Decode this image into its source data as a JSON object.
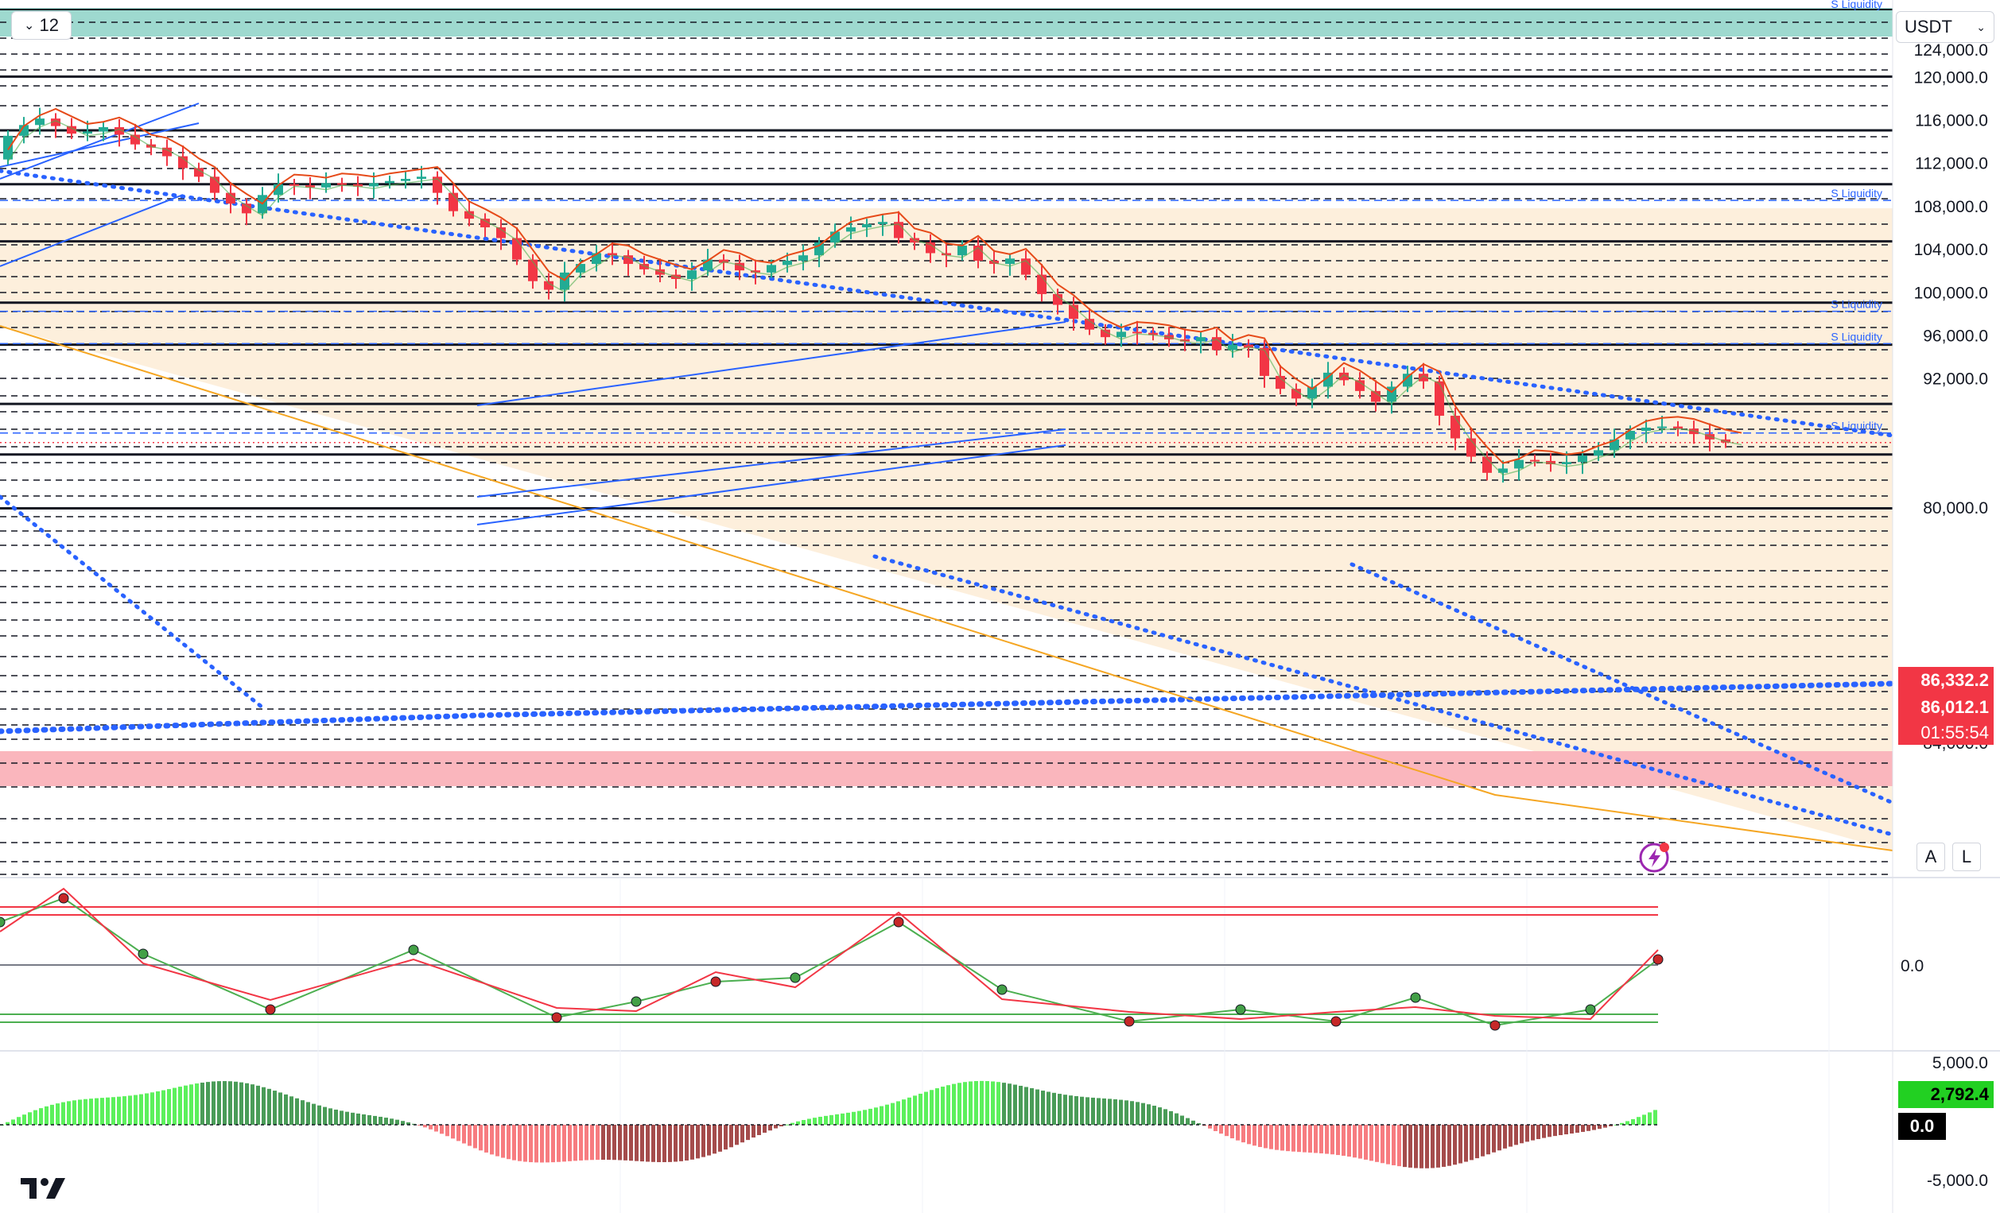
{
  "toolbar": {
    "interval_label": "12",
    "currency_label": "USDT",
    "auto_scale_label": "A",
    "log_scale_label": "L"
  },
  "badges": {
    "level_price": "86,332.2",
    "last_price": "86,012.1",
    "countdown": "01:55:54",
    "macd_value": "2,792.4",
    "macd_zero": "0.0"
  },
  "colors": {
    "up": "#22ab94",
    "down": "#f23645",
    "trend_blue": "#2962ff",
    "badge_red": "#f23645",
    "badge_green": "#22d022",
    "liquidity_top": "#9ed9cf",
    "supply_band": "#fab6bd",
    "channel_fill": "#fdebd3",
    "histogram_green_light": "#5cf05c",
    "histogram_green_dark": "#4a9c58",
    "histogram_red_light": "#f77c80",
    "histogram_red_dark": "#a54c4c"
  },
  "icons": [
    "chevron-down-icon",
    "lightning-icon",
    "tradingview-logo-icon"
  ],
  "chart_data": {
    "type": "candlestick",
    "y_scale": "linear",
    "ylim": [
      76600,
      124000
    ],
    "price_tick_labels": [
      "120,000.0",
      "116,000.0",
      "112,000.0",
      "108,000.0",
      "104,000.0",
      "100,000.0",
      "96,000.0",
      "92,000.0",
      "80,000.0"
    ],
    "partial_tick_labels": [
      "124,000.0",
      "84,000.0"
    ],
    "liquidity_labels": [
      {
        "text": "S Liquidity",
        "price": 124000
      },
      {
        "text": "S Liquidity",
        "price": 108500
      },
      {
        "text": "S Liquidity",
        "price": 98200
      },
      {
        "text": "S Liquidity",
        "price": 95200
      },
      {
        "text": "S Liquidity",
        "price": 86900
      }
    ],
    "horizontal_levels_solid": [
      120000,
      115000,
      110000,
      104700,
      99000,
      95100,
      89600,
      84900,
      79900
    ],
    "last_price": 86012.1,
    "level_price": 86332.2,
    "gridlines": "dashed horizontal",
    "oscillator": {
      "ticks": [
        "0.0"
      ]
    },
    "macd": {
      "ticks": [
        "5,000.0",
        "0.0",
        "-5,000.0"
      ],
      "last_value": 2792.4
    }
  }
}
